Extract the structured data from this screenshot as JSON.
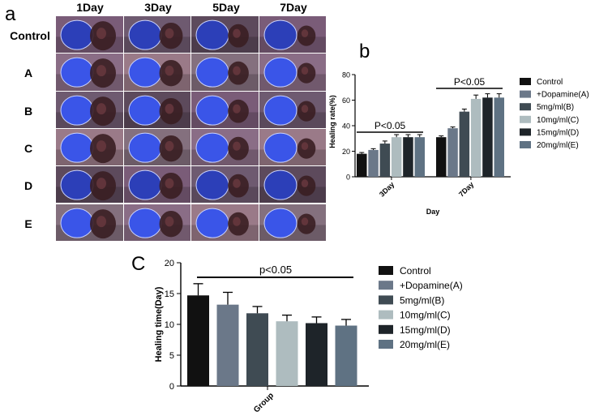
{
  "panel_a": {
    "letter": "a",
    "columns": [
      "1Day",
      "3Day",
      "5Day",
      "7Day"
    ],
    "rows": [
      "Control",
      "A",
      "B",
      "C",
      "D",
      "E"
    ]
  },
  "chart_data": [
    {
      "panel": "b",
      "type": "bar",
      "title": "",
      "xlabel": "Day",
      "ylabel": "Healing rate(%)",
      "categories": [
        "3Day",
        "7Day"
      ],
      "ylim": [
        0,
        80
      ],
      "yticks": [
        0,
        20,
        40,
        60,
        80
      ],
      "grid": false,
      "legend": "right",
      "series": [
        {
          "name": "Control",
          "color": "#111111",
          "values": [
            18,
            31
          ],
          "errors": [
            1,
            1
          ]
        },
        {
          "name": "+Dopamine(A)",
          "color": "#6b7889",
          "values": [
            21,
            38
          ],
          "errors": [
            1,
            1
          ]
        },
        {
          "name": "5mg/ml(B)",
          "color": "#3f4b53",
          "values": [
            26,
            51
          ],
          "errors": [
            2,
            2
          ]
        },
        {
          "name": "10mg/ml(C)",
          "color": "#aebcbf",
          "values": [
            31,
            61
          ],
          "errors": [
            2,
            3
          ]
        },
        {
          "name": "15mg/ml(D)",
          "color": "#1e2429",
          "values": [
            31,
            62
          ],
          "errors": [
            2,
            3
          ]
        },
        {
          "name": "20mg/ml(E)",
          "color": "#5f7283",
          "values": [
            31,
            62
          ],
          "errors": [
            2,
            3
          ]
        }
      ],
      "annotations": [
        "P<0.05",
        "P<0.05"
      ]
    },
    {
      "panel": "c",
      "type": "bar",
      "title": "",
      "xlabel": "Group",
      "ylabel": "Healing time(Day)",
      "categories": [
        "Control",
        "+Dopamine(A)",
        "5mg/ml(B)",
        "10mg/ml(C)",
        "15mg/ml(D)",
        "20mg/ml(E)"
      ],
      "values": [
        14.7,
        13.2,
        11.8,
        10.5,
        10.2,
        9.8
      ],
      "errors": [
        1.9,
        2.0,
        1.1,
        1.0,
        1.0,
        1.0
      ],
      "colors": [
        "#111111",
        "#6b7889",
        "#3f4b53",
        "#aebcbf",
        "#1e2429",
        "#5f7283"
      ],
      "ylim": [
        0,
        20
      ],
      "yticks": [
        0,
        5,
        10,
        15,
        20
      ],
      "grid": false,
      "legend": "right",
      "annotation": "p<0.05"
    }
  ],
  "panel_letters": {
    "b": "b",
    "c": "C"
  },
  "colors": {
    "wound_blue": "#2f47e0",
    "bg_purple": "#8c6f8a",
    "wound_dark": "#3a1e1e"
  }
}
